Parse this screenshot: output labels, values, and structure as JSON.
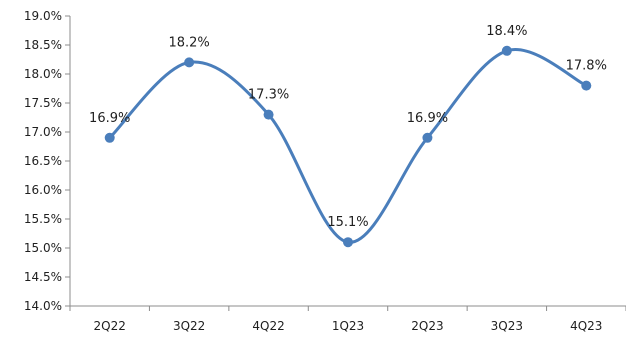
{
  "chart_data": {
    "type": "line",
    "categories": [
      "2Q22",
      "3Q22",
      "4Q22",
      "1Q23",
      "2Q23",
      "3Q23",
      "4Q23"
    ],
    "series": [
      {
        "values": [
          16.9,
          18.2,
          17.3,
          15.1,
          16.9,
          18.4,
          17.8
        ],
        "color": "#4A7EBB",
        "data_labels": [
          "16.9%",
          "18.2%",
          "17.3%",
          "15.1%",
          "16.9%",
          "18.4%",
          "17.8%"
        ]
      }
    ],
    "y_ticks": [
      "14.0%",
      "14.5%",
      "15.0%",
      "15.5%",
      "16.0%",
      "16.5%",
      "17.0%",
      "17.5%",
      "18.0%",
      "18.5%",
      "19.0%"
    ],
    "ylim": [
      14.0,
      19.0
    ],
    "y_step": 0.5,
    "smooth": true,
    "markers": true,
    "grid": false,
    "legend": "none"
  }
}
